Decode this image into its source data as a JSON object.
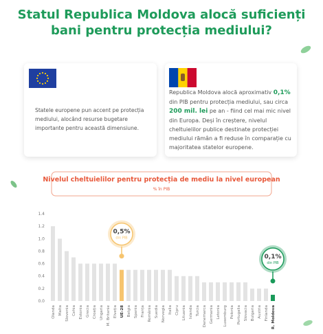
{
  "header": {
    "title_lines": [
      "Statul Republica Moldova alocă suficienți",
      "bani pentru protecția mediului?"
    ]
  },
  "cards": [
    {
      "paragraph": "Statele europene pun accent pe protecția mediului, alocând resurse bugetare importante pentru această dimensiune."
    },
    {
      "segments": [
        {
          "text": "Republica Moldova alocă aproximativ ",
          "highlight": false
        },
        {
          "text": "0,1%",
          "highlight": true
        },
        {
          "text": " din PIB pentru protecția mediului, sau circa ",
          "highlight": false
        },
        {
          "text": "200 mil. lei",
          "highlight": true
        },
        {
          "text": " pe an - fiind cel mai mic nivel din Europa. Deși în creștere, nivelul cheltuielilor publice destinate protecției mediului rămân a fi reduse în comparație cu majoritatea statelor europene.",
          "highlight": false
        }
      ]
    }
  ],
  "chart_data": {
    "type": "bar",
    "title": "Nivelul cheltuielilor pentru protecția de mediu la nivel european",
    "subtitle": "% în PIB",
    "categories": [
      "Olanda",
      "Malta",
      "Slovenia",
      "Cehia",
      "Estonia",
      "Grecia",
      "Croația",
      "Ungaria",
      "M. Britanie",
      "Elveția",
      "UE-28",
      "Belgia",
      "Spania",
      "Franța",
      "România",
      "Suedia",
      "Norvegia",
      "Italia",
      "Cipru",
      "Lituania",
      "Islanda",
      "Turcia",
      "Danemarca",
      "Germania",
      "Letonia",
      "Luxemburg",
      "Polonia",
      "Portugalia",
      "Slovacia",
      "Bulgaria",
      "Austria",
      "Finlanda",
      "R. Moldova"
    ],
    "values": [
      1.2,
      1.0,
      0.8,
      0.7,
      0.6,
      0.6,
      0.6,
      0.6,
      0.6,
      0.6,
      0.5,
      0.5,
      0.5,
      0.5,
      0.5,
      0.5,
      0.5,
      0.5,
      0.4,
      0.4,
      0.4,
      0.4,
      0.3,
      0.3,
      0.3,
      0.3,
      0.3,
      0.3,
      0.3,
      0.2,
      0.2,
      0.2,
      0.1
    ],
    "value_labels": [
      null,
      null,
      null,
      null,
      null,
      null,
      null,
      null,
      null,
      null,
      "0,5%",
      null,
      null,
      null,
      null,
      null,
      null,
      null,
      null,
      null,
      null,
      null,
      null,
      null,
      null,
      null,
      null,
      null,
      null,
      null,
      null,
      null,
      "0,1%"
    ],
    "annotation": "din PIB",
    "colors": [
      "#e3e3e3",
      "#e3e3e3",
      "#e3e3e3",
      "#e3e3e3",
      "#e3e3e3",
      "#e3e3e3",
      "#e3e3e3",
      "#e3e3e3",
      "#e3e3e3",
      "#e3e3e3",
      "#f6c46e",
      "#e3e3e3",
      "#e3e3e3",
      "#e3e3e3",
      "#e3e3e3",
      "#e3e3e3",
      "#e3e3e3",
      "#e3e3e3",
      "#e3e3e3",
      "#e3e3e3",
      "#e3e3e3",
      "#e3e3e3",
      "#e3e3e3",
      "#e3e3e3",
      "#e3e3e3",
      "#e3e3e3",
      "#e3e3e3",
      "#e3e3e3",
      "#e3e3e3",
      "#e3e3e3",
      "#e3e3e3",
      "#e3e3e3",
      "#1a9a5a"
    ],
    "ylim": [
      0,
      1.4
    ],
    "yticks": [
      {
        "value": 0,
        "label": "0.0"
      },
      0.2,
      0.4,
      0.6,
      0.8,
      {
        "value": 1,
        "label": "1.0"
      },
      1.2,
      1.4
    ],
    "grid": false
  }
}
